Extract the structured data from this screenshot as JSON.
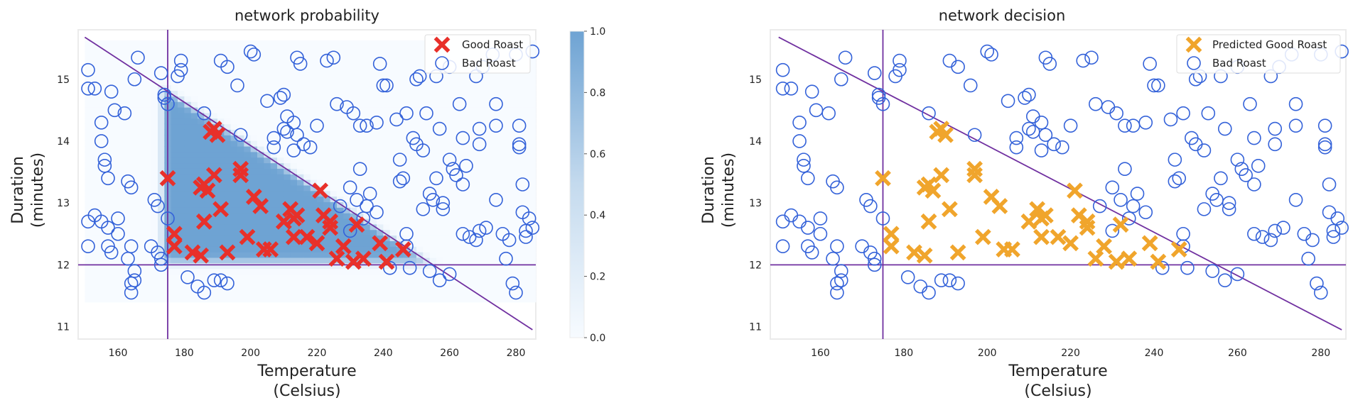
{
  "chart_data": [
    {
      "type": "scatter",
      "title": "network probability",
      "xlabel": [
        "Temperature",
        "(Celsius)"
      ],
      "ylabel": [
        "Duration",
        "(minutes)"
      ],
      "xlim": [
        148,
        286
      ],
      "ylim": [
        10.8,
        15.8
      ],
      "xticks": [
        "160",
        "180",
        "200",
        "220",
        "240",
        "260",
        "280"
      ],
      "yticks": [
        "11",
        "12",
        "13",
        "14",
        "15"
      ],
      "legend_position": "top-right",
      "legend": [
        "Good Roast",
        "Bad Roast"
      ],
      "good_color": "#e8302a",
      "bad_color": "#3462d9",
      "heatmap": {
        "colormap": "Blues",
        "range": [
          0,
          1
        ]
      },
      "colorbar": {
        "ticks": [
          "0.0",
          "0.2",
          "0.4",
          "0.6",
          "0.8",
          "1.0"
        ],
        "range": [
          0,
          1
        ]
      },
      "lines": [
        {
          "from": [
            175,
            10.8
          ],
          "to": [
            175,
            15.8
          ],
          "color": "#7030a0"
        },
        {
          "from": [
            148,
            12.0
          ],
          "to": [
            286,
            12.0
          ],
          "color": "#7030a0"
        },
        {
          "from": [
            150,
            15.68
          ],
          "to": [
            285,
            10.95
          ],
          "color": "#7030a0"
        }
      ]
    },
    {
      "type": "scatter",
      "title": "network decision",
      "xlabel": [
        "Temperature",
        "(Celsius)"
      ],
      "ylabel": [
        "Duration",
        "(minutes)"
      ],
      "xlim": [
        148,
        286
      ],
      "ylim": [
        10.8,
        15.8
      ],
      "xticks": [
        "160",
        "180",
        "200",
        "220",
        "240",
        "260",
        "280"
      ],
      "yticks": [
        "11",
        "12",
        "13",
        "14",
        "15"
      ],
      "legend_position": "top-right",
      "legend": [
        "Predicted Good Roast",
        "Bad Roast"
      ],
      "good_color": "#f0a52c",
      "bad_color": "#3462d9",
      "lines": [
        {
          "from": [
            175,
            10.8
          ],
          "to": [
            175,
            15.8
          ],
          "color": "#7030a0"
        },
        {
          "from": [
            148,
            12.0
          ],
          "to": [
            286,
            12.0
          ],
          "color": "#7030a0"
        },
        {
          "from": [
            150,
            15.68
          ],
          "to": [
            285,
            10.95
          ],
          "color": "#7030a0"
        }
      ]
    }
  ],
  "good_points": [
    [
      175.0,
      13.4
    ],
    [
      177.0,
      12.5
    ],
    [
      177.0,
      12.3
    ],
    [
      182.5,
      12.2
    ],
    [
      185.0,
      12.15
    ],
    [
      185.0,
      13.25
    ],
    [
      186.0,
      13.3
    ],
    [
      186.0,
      12.7
    ],
    [
      187.0,
      13.2
    ],
    [
      188.0,
      14.15
    ],
    [
      189.0,
      14.2
    ],
    [
      189.0,
      13.45
    ],
    [
      190.0,
      14.1
    ],
    [
      191.0,
      12.9
    ],
    [
      193.0,
      12.2
    ],
    [
      197.0,
      13.55
    ],
    [
      197.0,
      13.45
    ],
    [
      199.0,
      12.45
    ],
    [
      201.0,
      13.1
    ],
    [
      203.0,
      12.95
    ],
    [
      204.0,
      12.25
    ],
    [
      206.0,
      12.25
    ],
    [
      210.0,
      12.7
    ],
    [
      212.0,
      12.9
    ],
    [
      213.0,
      12.75
    ],
    [
      213.0,
      12.45
    ],
    [
      214.0,
      12.8
    ],
    [
      217.0,
      12.45
    ],
    [
      220.0,
      12.35
    ],
    [
      221.0,
      13.2
    ],
    [
      222.0,
      12.8
    ],
    [
      224.0,
      12.7
    ],
    [
      224.0,
      12.6
    ],
    [
      226.0,
      12.1
    ],
    [
      228.0,
      12.3
    ],
    [
      231.0,
      12.05
    ],
    [
      232.0,
      12.65
    ],
    [
      234.0,
      12.1
    ],
    [
      239.0,
      12.35
    ],
    [
      241.0,
      12.05
    ],
    [
      246.0,
      12.25
    ]
  ],
  "bad_points": [
    [
      151,
      15.15
    ],
    [
      151,
      14.85
    ],
    [
      153,
      14.85
    ],
    [
      151,
      12.7
    ],
    [
      151,
      12.3
    ],
    [
      153,
      12.8
    ],
    [
      155,
      14.3
    ],
    [
      155,
      14.0
    ],
    [
      156,
      13.6
    ],
    [
      156,
      13.7
    ],
    [
      157,
      13.4
    ],
    [
      155,
      12.7
    ],
    [
      157,
      12.6
    ],
    [
      157,
      12.3
    ],
    [
      158,
      12.2
    ],
    [
      158,
      14.8
    ],
    [
      160,
      12.5
    ],
    [
      159,
      14.5
    ],
    [
      160,
      12.75
    ],
    [
      162,
      14.45
    ],
    [
      163,
      13.35
    ],
    [
      163,
      12.1
    ],
    [
      164,
      11.7
    ],
    [
      164,
      11.55
    ],
    [
      165,
      11.9
    ],
    [
      164,
      13.25
    ],
    [
      164,
      12.3
    ],
    [
      165,
      11.75
    ],
    [
      165,
      15.0
    ],
    [
      166,
      15.35
    ],
    [
      170,
      12.3
    ],
    [
      171,
      13.05
    ],
    [
      172,
      12.95
    ],
    [
      172,
      12.2
    ],
    [
      173,
      12.0
    ],
    [
      173,
      12.1
    ],
    [
      174,
      14.7
    ],
    [
      174,
      14.75
    ],
    [
      173,
      15.1
    ],
    [
      175,
      14.6
    ],
    [
      175,
      12.75
    ],
    [
      178,
      15.05
    ],
    [
      179,
      15.3
    ],
    [
      179,
      15.15
    ],
    [
      181,
      11.8
    ],
    [
      184,
      11.65
    ],
    [
      186,
      11.55
    ],
    [
      186,
      14.45
    ],
    [
      189,
      11.75
    ],
    [
      191,
      15.3
    ],
    [
      191,
      11.75
    ],
    [
      193,
      15.2
    ],
    [
      193,
      11.7
    ],
    [
      196,
      14.9
    ],
    [
      197,
      14.1
    ],
    [
      200,
      15.45
    ],
    [
      201,
      15.4
    ],
    [
      205,
      14.65
    ],
    [
      207,
      14.05
    ],
    [
      207,
      13.9
    ],
    [
      209,
      14.7
    ],
    [
      210,
      14.75
    ],
    [
      210,
      14.2
    ],
    [
      211,
      14.4
    ],
    [
      211,
      14.15
    ],
    [
      213,
      14.3
    ],
    [
      213,
      13.85
    ],
    [
      214,
      15.35
    ],
    [
      214,
      14.1
    ],
    [
      215,
      15.25
    ],
    [
      216,
      13.95
    ],
    [
      218,
      13.9
    ],
    [
      220,
      14.25
    ],
    [
      223,
      15.3
    ],
    [
      225,
      15.35
    ],
    [
      226,
      14.6
    ],
    [
      227,
      12.95
    ],
    [
      229,
      14.55
    ],
    [
      230,
      13.25
    ],
    [
      230,
      12.55
    ],
    [
      231,
      14.45
    ],
    [
      232,
      13.05
    ],
    [
      233,
      14.25
    ],
    [
      233,
      13.55
    ],
    [
      234,
      12.75
    ],
    [
      235,
      12.95
    ],
    [
      235,
      14.25
    ],
    [
      236,
      13.15
    ],
    [
      238,
      14.3
    ],
    [
      238,
      12.85
    ],
    [
      239,
      15.25
    ],
    [
      240,
      14.9
    ],
    [
      241,
      14.9
    ],
    [
      242,
      11.95
    ],
    [
      244,
      14.35
    ],
    [
      245,
      13.7
    ],
    [
      245,
      13.35
    ],
    [
      246,
      13.4
    ],
    [
      247,
      14.45
    ],
    [
      247,
      12.5
    ],
    [
      247,
      12.3
    ],
    [
      248,
      11.95
    ],
    [
      249,
      14.05
    ],
    [
      250,
      15.0
    ],
    [
      250,
      13.95
    ],
    [
      251,
      15.05
    ],
    [
      252,
      13.85
    ],
    [
      252,
      12.9
    ],
    [
      253,
      14.45
    ],
    [
      254,
      11.9
    ],
    [
      254,
      13.15
    ],
    [
      255,
      13.05
    ],
    [
      256,
      15.05
    ],
    [
      256,
      13.4
    ],
    [
      257,
      14.2
    ],
    [
      257,
      11.75
    ],
    [
      258,
      13.0
    ],
    [
      258,
      12.9
    ],
    [
      260,
      11.85
    ],
    [
      260,
      15.2
    ],
    [
      260,
      13.7
    ],
    [
      261,
      13.55
    ],
    [
      262,
      13.45
    ],
    [
      263,
      14.6
    ],
    [
      264,
      12.5
    ],
    [
      264,
      13.3
    ],
    [
      264,
      14.05
    ],
    [
      265,
      13.6
    ],
    [
      266,
      12.45
    ],
    [
      268,
      15.05
    ],
    [
      268,
      12.4
    ],
    [
      269,
      14.2
    ],
    [
      269,
      13.95
    ],
    [
      269,
      12.55
    ],
    [
      270,
      15.2
    ],
    [
      271,
      12.6
    ],
    [
      273,
      15.4
    ],
    [
      274,
      14.6
    ],
    [
      274,
      14.25
    ],
    [
      274,
      13.05
    ],
    [
      276,
      12.5
    ],
    [
      277,
      12.1
    ],
    [
      278,
      12.4
    ],
    [
      279,
      11.7
    ],
    [
      280,
      15.4
    ],
    [
      280,
      11.55
    ],
    [
      281,
      14.25
    ],
    [
      281,
      13.9
    ],
    [
      281,
      13.95
    ],
    [
      282,
      13.3
    ],
    [
      282,
      12.85
    ],
    [
      283,
      12.45
    ],
    [
      283,
      12.55
    ],
    [
      284,
      12.75
    ],
    [
      285,
      15.45
    ],
    [
      285,
      12.6
    ]
  ]
}
